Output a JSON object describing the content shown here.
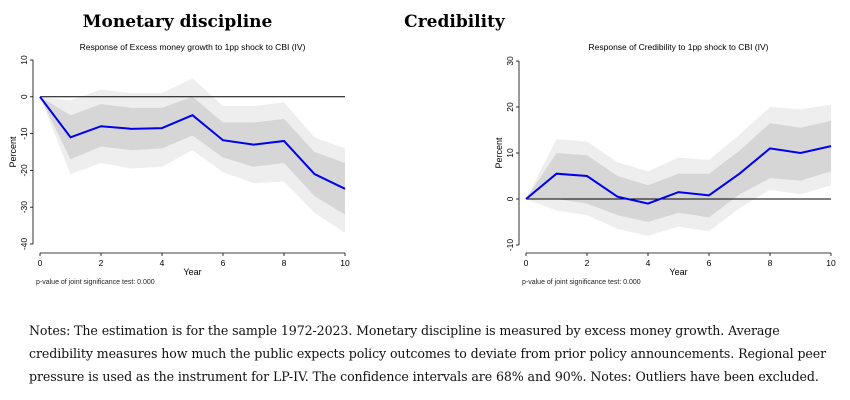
{
  "chart_data": [
    {
      "type": "line",
      "panel_title": "Monetary discipline",
      "title": "Response of Excess money growth to 1pp shock to CBI (IV)",
      "xlabel": "Year",
      "ylabel": "Percent",
      "xlim": [
        0,
        10
      ],
      "ylim": [
        -40,
        10
      ],
      "xticks": [
        "0",
        "2",
        "4",
        "6",
        "8",
        "10"
      ],
      "yticks": [
        "-40",
        "-30",
        "-20",
        "-10",
        "0",
        "10"
      ],
      "x": [
        0,
        1,
        2,
        3,
        4,
        5,
        6,
        7,
        8,
        9,
        10
      ],
      "series": [
        {
          "values": [
            0,
            -11,
            -8,
            -8.7,
            -8.5,
            -5,
            -11.8,
            -13,
            -12,
            -21,
            -25
          ],
          "color": "#0000ee"
        }
      ],
      "band68": {
        "lower": [
          0,
          -17,
          -13.5,
          -14.5,
          -14,
          -10.5,
          -16.5,
          -19,
          -18,
          -27,
          -32
        ],
        "upper": [
          0,
          -5,
          -2,
          -3,
          -3,
          0,
          -7,
          -7,
          -6,
          -15,
          -18
        ],
        "color": "#d6d6d6"
      },
      "band90": {
        "lower": [
          0,
          -21,
          -18,
          -19.5,
          -19,
          -14.5,
          -20.5,
          -23.5,
          -23,
          -31.5,
          -37
        ],
        "upper": [
          0,
          -1,
          2,
          1,
          1,
          5,
          -2.5,
          -2.5,
          -1.5,
          -11,
          -14
        ],
        "color": "#eeeeee"
      },
      "reference_line": 0,
      "note": "p-value of joint significance test: 0.000"
    },
    {
      "type": "line",
      "panel_title": "Credibility",
      "title": "Response of Credibility to 1pp shock to CBI (IV)",
      "xlabel": "Year",
      "ylabel": "Percent",
      "xlim": [
        0,
        10
      ],
      "ylim": [
        -10,
        30
      ],
      "xticks": [
        "0",
        "2",
        "4",
        "6",
        "8",
        "10"
      ],
      "yticks": [
        "-10",
        "0",
        "10",
        "20",
        "30"
      ],
      "x": [
        0,
        1,
        2,
        3,
        4,
        5,
        6,
        7,
        8,
        9,
        10
      ],
      "series": [
        {
          "values": [
            0,
            5.5,
            5,
            0.5,
            -1,
            1.5,
            0.8,
            5.5,
            11,
            10,
            11.5
          ],
          "color": "#0000ee"
        }
      ],
      "band68": {
        "lower": [
          0,
          0,
          -1,
          -3.5,
          -5,
          -3,
          -4,
          1,
          4.5,
          4,
          6
        ],
        "upper": [
          0,
          10,
          9.5,
          5,
          3,
          5.5,
          5.5,
          10.5,
          16.5,
          15.5,
          17
        ],
        "color": "#d6d6d6"
      },
      "band90": {
        "lower": [
          0,
          -2.5,
          -3.5,
          -6.5,
          -8,
          -6,
          -7,
          -2,
          2,
          1,
          3
        ],
        "upper": [
          0,
          13,
          12.5,
          8,
          6,
          9,
          8.5,
          14,
          20,
          19.5,
          20.5
        ],
        "color": "#eeeeee"
      },
      "reference_line": 0,
      "note": "p-value of joint significance test: 0.000"
    }
  ],
  "notes_text": "Notes: The estimation is for the sample 1972-2023. Monetary discipline is measured by excess money growth. Average credibility measures how much the public expects policy outcomes to deviate from prior policy announcements. Regional peer pressure is used as the instrument for LP-IV. The confidence intervals are 68% and 90%. Notes: Outliers have been excluded."
}
